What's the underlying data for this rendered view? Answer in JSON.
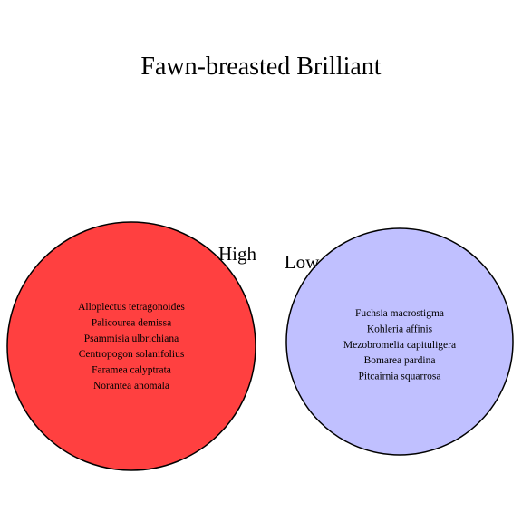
{
  "title": "Fawn-breasted Brilliant",
  "sets": [
    {
      "label": "High",
      "color": "#ff4040",
      "members": [
        "Alloplectus tetragonoides",
        "Palicourea demissa",
        "Psammisia ulbrichiana",
        "Centropogon solanifolius",
        "Faramea calyptrata",
        "Norantea anomala"
      ]
    },
    {
      "label": "Low",
      "color": "#c0c0ff",
      "members": [
        "Fuchsia macrostigma",
        "Kohleria affinis",
        "Mezobromelia capituligera",
        "Bomarea pardina",
        "Pitcairnia squarrosa"
      ]
    }
  ]
}
